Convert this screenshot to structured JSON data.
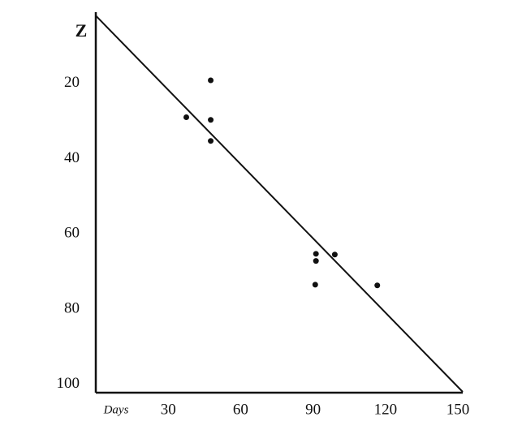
{
  "chart_data": {
    "type": "scatter",
    "x_label": "Days",
    "y_label": "Z",
    "x": [
      37.5,
      47.6,
      47.6,
      47.6,
      91.2,
      91.2,
      90.9,
      99,
      116.6
    ],
    "y": [
      29,
      19.2,
      29.7,
      35.3,
      65.3,
      67.2,
      73.5,
      65.5,
      73.7
    ],
    "fit_line": {
      "x": [
        0,
        152
      ],
      "y": [
        2,
        102
      ]
    },
    "color": "#111111",
    "xlim": [
      0,
      152
    ],
    "ylim": [
      0,
      102
    ],
    "y_inverted": true,
    "xticks": [
      30,
      60,
      90,
      120,
      150
    ],
    "yticks": [
      20,
      40,
      60,
      80,
      100
    ],
    "grid": false
  }
}
